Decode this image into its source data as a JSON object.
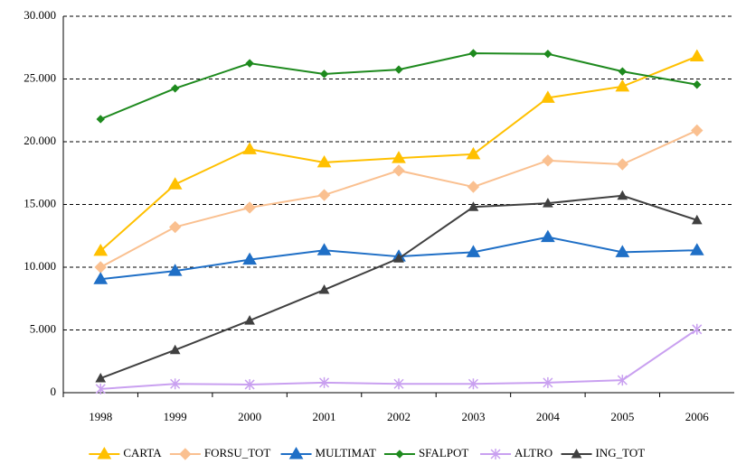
{
  "chart_data": {
    "type": "line",
    "categories": [
      "1998",
      "1999",
      "2000",
      "2001",
      "2002",
      "2003",
      "2004",
      "2005",
      "2006"
    ],
    "series": [
      {
        "name": "CARTA",
        "color": "#ffc000",
        "marker": "triangle",
        "values": [
          11300,
          16600,
          19400,
          18350,
          18700,
          19000,
          23500,
          24400,
          26800
        ]
      },
      {
        "name": "FORSU_TOT",
        "color": "#fac090",
        "marker": "diamond",
        "values": [
          10000,
          13200,
          14750,
          15750,
          17700,
          16400,
          18500,
          18200,
          20900
        ]
      },
      {
        "name": "MULTIMAT",
        "color": "#1f6fc6",
        "marker": "triangle",
        "values": [
          9050,
          9700,
          10600,
          11350,
          10850,
          11200,
          12400,
          11200,
          11350
        ]
      },
      {
        "name": "SFALPOT",
        "color": "#1e8a1e",
        "marker": "small-diamond",
        "values": [
          21800,
          24250,
          26250,
          25400,
          25750,
          27050,
          27000,
          25600,
          24550
        ]
      },
      {
        "name": "ALTRO",
        "color": "#c9a0f0",
        "marker": "star",
        "values": [
          300,
          700,
          650,
          800,
          700,
          700,
          800,
          1000,
          5050
        ]
      },
      {
        "name": "ING_TOT",
        "color": "#404040",
        "marker": "small-triangle",
        "values": [
          1150,
          3400,
          5750,
          8200,
          10700,
          14800,
          15100,
          15700,
          13750
        ]
      }
    ],
    "ylim": [
      0,
      30000
    ],
    "yticks": [
      0,
      {
        "value": 5000,
        "label": "5.000"
      },
      {
        "value": 10000,
        "label": "10.000"
      },
      {
        "value": 15000,
        "label": "15.000"
      },
      {
        "value": 20000,
        "label": "20.000"
      },
      {
        "value": 25000,
        "label": "25.000"
      },
      {
        "value": 30000,
        "label": "30.000"
      }
    ],
    "grid": true,
    "legend": "bottom"
  }
}
